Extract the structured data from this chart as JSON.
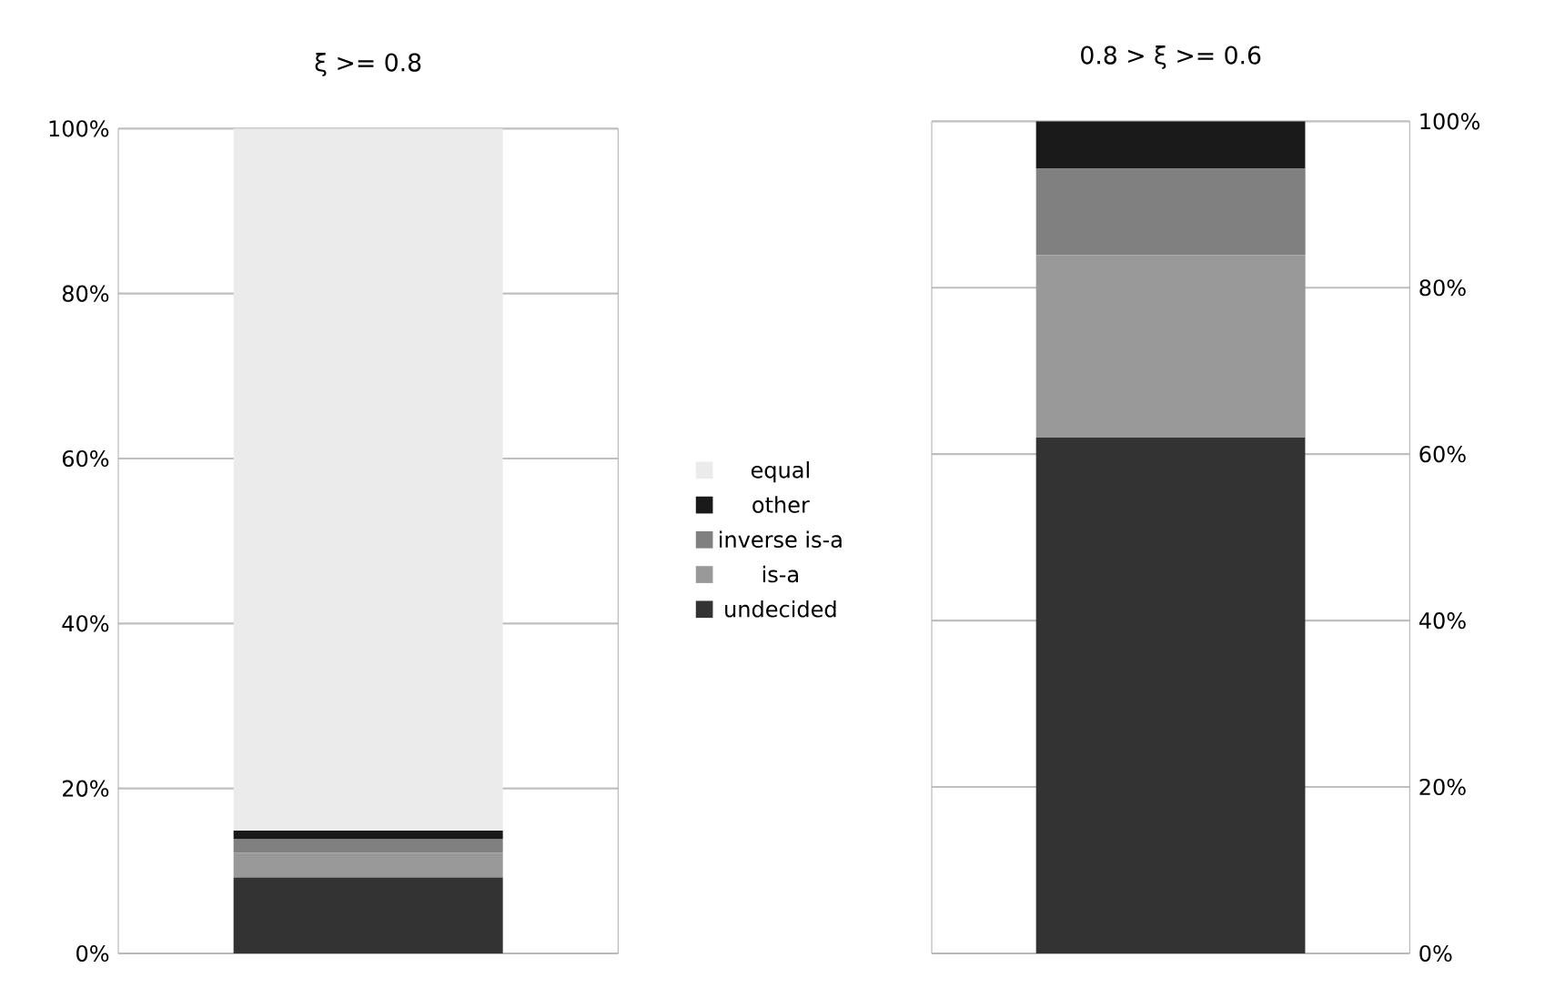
{
  "chart_data": [
    {
      "type": "bar",
      "title": "ξ >= 0.8",
      "stacked": true,
      "categories": [
        null
      ],
      "legend": "right",
      "grid": "y",
      "ylim": [
        0,
        100
      ],
      "yticks": [
        {
          "value": 0,
          "label": "0%"
        },
        {
          "value": 20,
          "label": "20%"
        },
        {
          "value": 40,
          "label": "40%"
        },
        {
          "value": 60,
          "label": "60%"
        },
        {
          "value": 80,
          "label": "80%"
        },
        {
          "value": 100,
          "label": "100%"
        }
      ],
      "series": [
        {
          "name": "undecided",
          "color": "#333333",
          "values": [
            9.2
          ]
        },
        {
          "name": "is-a",
          "color": "#999999",
          "values": [
            3.0
          ]
        },
        {
          "name": "inverse is-a",
          "color": "#808080",
          "values": [
            1.7
          ]
        },
        {
          "name": "other",
          "color": "#1a1a1a",
          "values": [
            1.0
          ]
        },
        {
          "name": "equal",
          "color": "#ebebeb",
          "values": [
            85.1
          ]
        }
      ]
    },
    {
      "type": "bar",
      "title": "0.8 > ξ >= 0.6",
      "stacked": true,
      "categories": [
        null
      ],
      "grid": "y",
      "ylim": [
        0,
        100
      ],
      "yticks": [
        {
          "value": 0,
          "label": "0%"
        },
        {
          "value": 20,
          "label": "20%"
        },
        {
          "value": 40,
          "label": "40%"
        },
        {
          "value": 60,
          "label": "60%"
        },
        {
          "value": 80,
          "label": "80%"
        },
        {
          "value": 100,
          "label": "100%"
        }
      ],
      "series": [
        {
          "color": "#333333",
          "values": [
            62.0
          ]
        },
        {
          "color": "#999999",
          "values": [
            21.9
          ]
        },
        {
          "color": "#808080",
          "values": [
            10.4
          ]
        },
        {
          "color": "#1a1a1a",
          "values": [
            5.7
          ]
        },
        {
          "color": "#ebebeb",
          "values": [
            0
          ]
        }
      ]
    }
  ]
}
